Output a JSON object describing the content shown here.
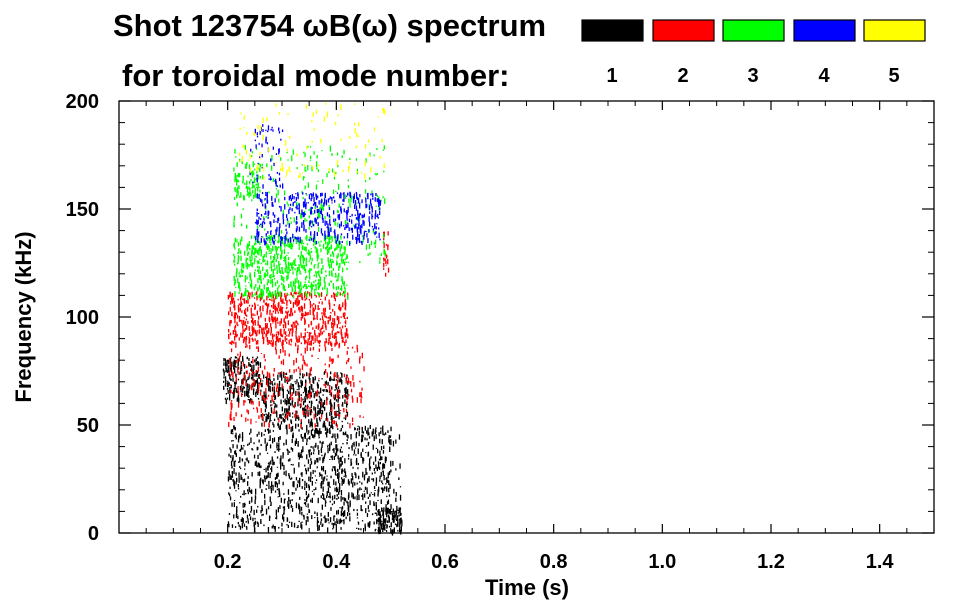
{
  "chart_data": {
    "type": "heatmap",
    "title_line1": "Shot 123754 ωB(ω) spectrum",
    "title_line2": "for toroidal mode number:",
    "xlabel": "Time (s)",
    "ylabel": "Frequency (kHz)",
    "xlim": [
      0.0,
      1.5
    ],
    "ylim": [
      0,
      200
    ],
    "x_ticks": [
      0.2,
      0.4,
      0.6,
      0.8,
      1.0,
      1.2,
      1.4
    ],
    "x_tick_labels": [
      "0.2",
      "0.4",
      "0.6",
      "0.8",
      "1.0",
      "1.2",
      "1.4"
    ],
    "y_ticks": [
      0,
      50,
      100,
      150,
      200
    ],
    "y_tick_labels": [
      "0",
      "50",
      "100",
      "150",
      "200"
    ],
    "legend_position": "top-right",
    "grid": false,
    "series": [
      {
        "name": "1",
        "color": "#000000",
        "bands": [
          {
            "t": [
              0.19,
              0.26
            ],
            "f": [
              62,
              82
            ],
            "density": 0.55
          },
          {
            "t": [
              0.26,
              0.42
            ],
            "f": [
              50,
              75
            ],
            "density": 0.42
          },
          {
            "t": [
              0.2,
              0.5
            ],
            "f": [
              2,
              50
            ],
            "density": 0.22
          },
          {
            "t": [
              0.47,
              0.52
            ],
            "f": [
              1,
              12
            ],
            "density": 0.75
          },
          {
            "t": [
              0.33,
              0.52
            ],
            "f": [
              5,
              50
            ],
            "density": 0.08
          }
        ]
      },
      {
        "name": "2",
        "color": "#ff0000",
        "bands": [
          {
            "t": [
              0.2,
              0.42
            ],
            "f": [
              88,
              112
            ],
            "density": 0.45
          },
          {
            "t": [
              0.2,
              0.45
            ],
            "f": [
              50,
              88
            ],
            "density": 0.12
          },
          {
            "t": [
              0.485,
              0.495
            ],
            "f": [
              120,
              140
            ],
            "density": 0.5
          }
        ]
      },
      {
        "name": "3",
        "color": "#00ff00",
        "bands": [
          {
            "t": [
              0.21,
              0.42
            ],
            "f": [
              110,
              138
            ],
            "density": 0.4
          },
          {
            "t": [
              0.21,
              0.26
            ],
            "f": [
              155,
              172
            ],
            "density": 0.35
          },
          {
            "t": [
              0.21,
              0.49
            ],
            "f": [
              125,
              180
            ],
            "density": 0.07
          }
        ]
      },
      {
        "name": "4",
        "color": "#0000ff",
        "bands": [
          {
            "t": [
              0.25,
              0.48
            ],
            "f": [
              135,
              158
            ],
            "density": 0.3
          },
          {
            "t": [
              0.24,
              0.3
            ],
            "f": [
              160,
              190
            ],
            "density": 0.12
          }
        ]
      },
      {
        "name": "5",
        "color": "#ffff00",
        "bands": [
          {
            "t": [
              0.22,
              0.49
            ],
            "f": [
              165,
              200
            ],
            "density": 0.04
          }
        ]
      }
    ]
  }
}
